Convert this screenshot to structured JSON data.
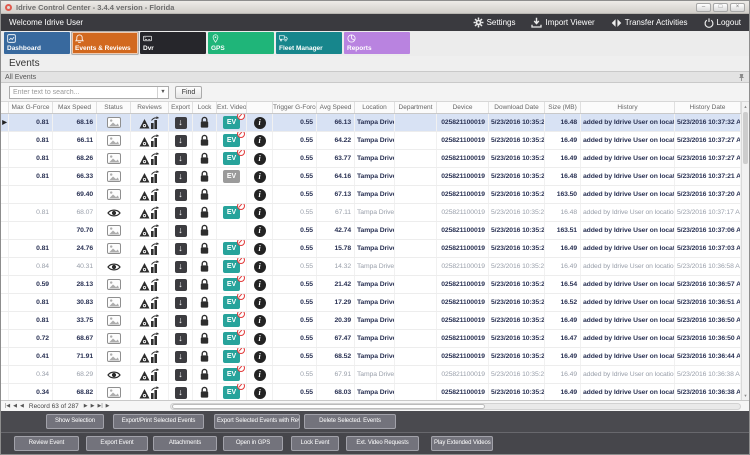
{
  "window": {
    "title": "Idrive Control Center - 3.4.4 version - Florida",
    "minimize": "–",
    "maximize": "□",
    "close": "×"
  },
  "menubar": {
    "welcome": "Welcome Idrive User",
    "settings": "Settings",
    "import_viewer": "Import Viewer",
    "transfer_activities": "Transfer Activities",
    "logout": "Logout"
  },
  "tabs": [
    {
      "label": "Dashboard",
      "color": "#38699e",
      "selected": false
    },
    {
      "label": "Events & Reviews",
      "color": "#d2691f",
      "selected": true
    },
    {
      "label": "Dvr",
      "color": "#26262b",
      "selected": false
    },
    {
      "label": "GPS",
      "color": "#1fb579",
      "selected": false
    },
    {
      "label": "Fleet Manager",
      "color": "#17868c",
      "selected": false
    },
    {
      "label": "Reports",
      "color": "#b983e0",
      "selected": false
    }
  ],
  "page": {
    "title": "Events",
    "group_header": "All Events"
  },
  "search": {
    "placeholder": "Enter text to search...",
    "find_label": "Find"
  },
  "grid": {
    "columns": [
      "",
      "Max G-Force",
      "Max Speed",
      "Status",
      "Reviews",
      "Export",
      "Lock",
      "Ext. Videos",
      "",
      "Trigger G-Force",
      "Avg Speed",
      "Location",
      "Department",
      "Device",
      "Download Date",
      "Size (MB)",
      "History",
      "History Date"
    ],
    "rows": [
      {
        "selected": true,
        "muted": false,
        "max_g": "0.81",
        "max_speed": "68.16",
        "status": "image",
        "ev": "teal",
        "ev_badge": true,
        "trigger_g": "0.55",
        "avg_speed": "66.13",
        "location": "Tampa Drive P...",
        "department": "",
        "device": "025821100019",
        "download_date": "5/23/2016 10:35:29 ...",
        "size": "16.48",
        "history": "added by Idrive User on location T...",
        "history_date": "5/23/2016 10:37:32 AM"
      },
      {
        "selected": false,
        "muted": false,
        "max_g": "0.81",
        "max_speed": "66.11",
        "status": "image",
        "ev": "teal",
        "ev_badge": true,
        "trigger_g": "0.55",
        "avg_speed": "64.22",
        "location": "Tampa Drive P...",
        "department": "",
        "device": "025821100019",
        "download_date": "5/23/2016 10:35:29 ...",
        "size": "16.49",
        "history": "added by Idrive User on location T...",
        "history_date": "5/23/2016 10:37:27 AM"
      },
      {
        "selected": false,
        "muted": false,
        "max_g": "0.81",
        "max_speed": "68.26",
        "status": "image",
        "ev": "teal",
        "ev_badge": true,
        "trigger_g": "0.55",
        "avg_speed": "63.77",
        "location": "Tampa Drive P...",
        "department": "",
        "device": "025821100019",
        "download_date": "5/23/2016 10:35:29 ...",
        "size": "16.49",
        "history": "added by Idrive User on location T...",
        "history_date": "5/23/2016 10:37:27 AM"
      },
      {
        "selected": false,
        "muted": false,
        "max_g": "0.81",
        "max_speed": "66.33",
        "status": "image",
        "ev": "gray",
        "ev_badge": false,
        "trigger_g": "0.55",
        "avg_speed": "64.16",
        "location": "Tampa Drive P...",
        "department": "",
        "device": "025821100019",
        "download_date": "5/23/2016 10:35:29 ...",
        "size": "16.48",
        "history": "added by Idrive User on location T...",
        "history_date": "5/23/2016 10:37:21 AM"
      },
      {
        "selected": false,
        "muted": false,
        "max_g": "",
        "max_speed": "69.40",
        "status": "image",
        "ev": "none",
        "ev_badge": false,
        "trigger_g": "0.55",
        "avg_speed": "67.13",
        "location": "Tampa Drive P...",
        "department": "",
        "device": "025821100019",
        "download_date": "5/23/2016 10:35:29 ...",
        "size": "163.50",
        "history": "added by Idrive User on location T...",
        "history_date": "5/23/2016 10:37:20 AM"
      },
      {
        "selected": false,
        "muted": true,
        "max_g": "0.81",
        "max_speed": "68.07",
        "status": "eye",
        "ev": "teal",
        "ev_badge": true,
        "trigger_g": "0.55",
        "avg_speed": "67.11",
        "location": "Tampa Drive Pad",
        "department": "",
        "device": "025821100019",
        "download_date": "5/23/2016 10:35:29 AM",
        "size": "16.48",
        "history": "added by Idrive User on location Tamp...",
        "history_date": "5/23/2016 10:37:17 AM"
      },
      {
        "selected": false,
        "muted": false,
        "max_g": "",
        "max_speed": "70.70",
        "status": "image",
        "ev": "none",
        "ev_badge": false,
        "trigger_g": "0.55",
        "avg_speed": "42.74",
        "location": "Tampa Drive P...",
        "department": "",
        "device": "025821100019",
        "download_date": "5/23/2016 10:35:29 ...",
        "size": "163.51",
        "history": "added by Idrive User on location T...",
        "history_date": "5/23/2016 10:37:06 AM"
      },
      {
        "selected": false,
        "muted": false,
        "max_g": "0.81",
        "max_speed": "24.76",
        "status": "image",
        "ev": "teal",
        "ev_badge": true,
        "trigger_g": "0.55",
        "avg_speed": "15.78",
        "location": "Tampa Drive P...",
        "department": "",
        "device": "025821100019",
        "download_date": "5/23/2016 10:35:29 ...",
        "size": "16.49",
        "history": "added by Idrive User on location T...",
        "history_date": "5/23/2016 10:37:03 AM"
      },
      {
        "selected": false,
        "muted": true,
        "max_g": "0.84",
        "max_speed": "40.31",
        "status": "eye",
        "ev": "teal",
        "ev_badge": true,
        "trigger_g": "0.55",
        "avg_speed": "14.32",
        "location": "Tampa Drive Pad",
        "department": "",
        "device": "025821100019",
        "download_date": "5/23/2016 10:35:29 AM",
        "size": "16.49",
        "history": "added by Idrive User on location Tamp...",
        "history_date": "5/23/2016 10:36:58 AM"
      },
      {
        "selected": false,
        "muted": false,
        "max_g": "0.59",
        "max_speed": "28.13",
        "status": "image",
        "ev": "teal",
        "ev_badge": true,
        "trigger_g": "0.55",
        "avg_speed": "21.42",
        "location": "Tampa Drive P...",
        "department": "",
        "device": "025821100019",
        "download_date": "5/23/2016 10:35:29 ...",
        "size": "16.54",
        "history": "added by Idrive User on location T...",
        "history_date": "5/23/2016 10:36:57 AM"
      },
      {
        "selected": false,
        "muted": false,
        "max_g": "0.81",
        "max_speed": "30.83",
        "status": "image",
        "ev": "teal",
        "ev_badge": true,
        "trigger_g": "0.55",
        "avg_speed": "17.29",
        "location": "Tampa Drive P...",
        "department": "",
        "device": "025821100019",
        "download_date": "5/23/2016 10:35:29 ...",
        "size": "16.52",
        "history": "added by Idrive User on location T...",
        "history_date": "5/23/2016 10:36:51 AM"
      },
      {
        "selected": false,
        "muted": false,
        "max_g": "0.81",
        "max_speed": "33.75",
        "status": "image",
        "ev": "teal",
        "ev_badge": true,
        "trigger_g": "0.55",
        "avg_speed": "20.39",
        "location": "Tampa Drive P...",
        "department": "",
        "device": "025821100019",
        "download_date": "5/23/2016 10:35:29 ...",
        "size": "16.49",
        "history": "added by Idrive User on location T...",
        "history_date": "5/23/2016 10:36:50 AM"
      },
      {
        "selected": false,
        "muted": false,
        "max_g": "0.72",
        "max_speed": "68.67",
        "status": "image",
        "ev": "teal",
        "ev_badge": true,
        "trigger_g": "0.55",
        "avg_speed": "67.47",
        "location": "Tampa Drive P...",
        "department": "",
        "device": "025821100019",
        "download_date": "5/23/2016 10:35:29 ...",
        "size": "16.47",
        "history": "added by Idrive User on location T...",
        "history_date": "5/23/2016 10:36:50 AM"
      },
      {
        "selected": false,
        "muted": false,
        "max_g": "0.41",
        "max_speed": "71.91",
        "status": "image",
        "ev": "teal",
        "ev_badge": true,
        "trigger_g": "0.55",
        "avg_speed": "68.52",
        "location": "Tampa Drive P...",
        "department": "",
        "device": "025821100019",
        "download_date": "5/23/2016 10:35:29 ...",
        "size": "16.49",
        "history": "added by Idrive User on location T...",
        "history_date": "5/23/2016 10:36:44 AM"
      },
      {
        "selected": false,
        "muted": true,
        "max_g": "0.34",
        "max_speed": "68.29",
        "status": "eye",
        "ev": "teal",
        "ev_badge": true,
        "trigger_g": "0.55",
        "avg_speed": "67.91",
        "location": "Tampa Drive Pad",
        "department": "",
        "device": "025821100019",
        "download_date": "5/23/2016 10:35:29 AM",
        "size": "16.49",
        "history": "added by Idrive User on location Tamp...",
        "history_date": "5/23/2016 10:36:38 AM"
      },
      {
        "selected": false,
        "muted": false,
        "max_g": "0.34",
        "max_speed": "68.82",
        "status": "image",
        "ev": "teal",
        "ev_badge": true,
        "trigger_g": "0.55",
        "avg_speed": "68.03",
        "location": "Tampa Drive P...",
        "department": "",
        "device": "025821100019",
        "download_date": "5/23/2016 10:35:29 ...",
        "size": "16.49",
        "history": "added by Idrive User on location T...",
        "history_date": "5/23/2016 10:36:38 AM"
      }
    ]
  },
  "pager": {
    "record_text": "Record 63 of 287"
  },
  "actions_primary": [
    "Show Selection",
    "Export/Print Selected Events",
    "Export Selected Events with Reviews",
    "Delete Selected. Events"
  ],
  "actions_secondary": [
    "Review Event",
    "Export Event",
    "Attachments",
    "Open in GPS",
    "Lock Event",
    "Ext. Video Requests",
    "Play Extended Videos"
  ]
}
